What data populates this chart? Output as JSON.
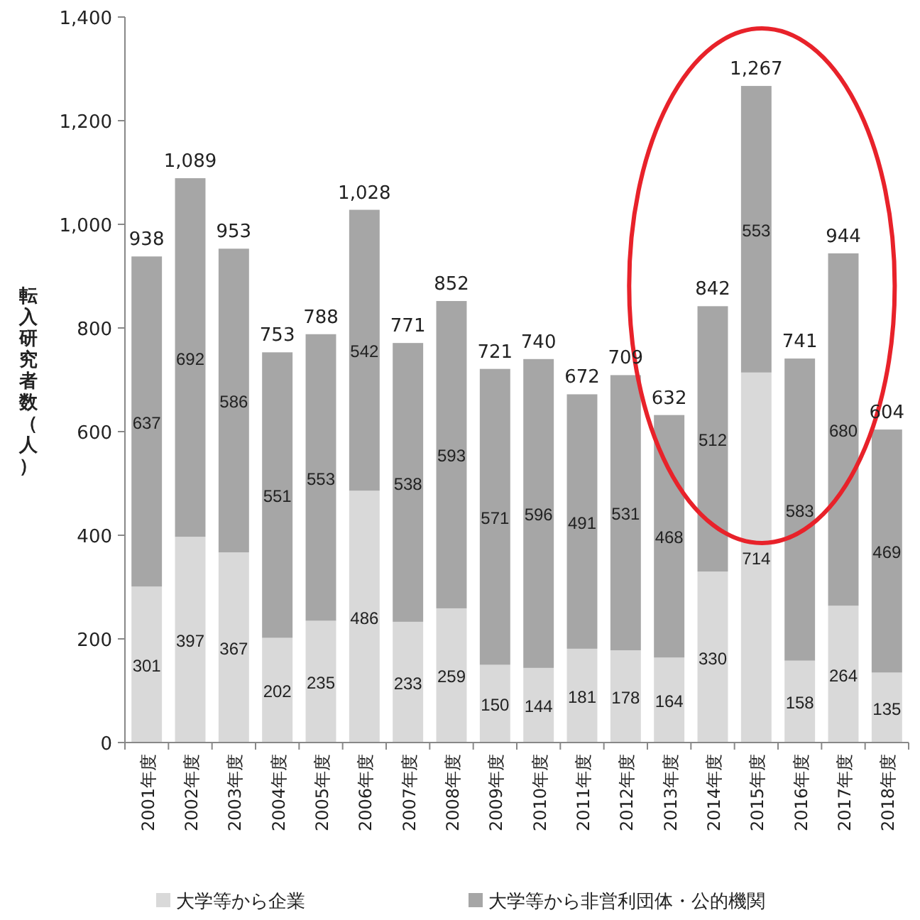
{
  "chart_data": {
    "type": "bar",
    "stacked": true,
    "ylabel": "転入研究者数（人）",
    "categories": [
      "2001年度",
      "2002年度",
      "2003年度",
      "2004年度",
      "2005年度",
      "2006年度",
      "2007年度",
      "2008年度",
      "2009年度",
      "2010年度",
      "2011年度",
      "2012年度",
      "2013年度",
      "2014年度",
      "2015年度",
      "2016年度",
      "2017年度",
      "2018年度"
    ],
    "series": [
      {
        "name": "大学等から企業",
        "color": "#d9d9d9",
        "values": [
          301,
          397,
          367,
          202,
          235,
          486,
          233,
          259,
          150,
          144,
          181,
          178,
          164,
          330,
          714,
          158,
          264,
          135
        ]
      },
      {
        "name": "大学等から非営利団体・公的機関",
        "color": "#a6a6a6",
        "values": [
          637,
          692,
          586,
          551,
          553,
          542,
          538,
          593,
          571,
          596,
          491,
          531,
          468,
          512,
          553,
          583,
          680,
          469
        ]
      }
    ],
    "totals": [
      "938",
      "1,089",
      "953",
      "753",
      "788",
      "1,028",
      "771",
      "852",
      "721",
      "740",
      "672",
      "709",
      "632",
      "842",
      "1,267",
      "741",
      "944",
      "604"
    ],
    "data_labels": true,
    "ylim": [
      0,
      1400
    ],
    "yticks": [
      0,
      {
        "value": 200,
        "label": "200"
      },
      {
        "value": 400,
        "label": "400"
      },
      {
        "value": 600,
        "label": "600"
      },
      {
        "value": 800,
        "label": "800"
      },
      {
        "value": 1000,
        "label": "1,000"
      },
      {
        "value": 1200,
        "label": "1,200"
      },
      {
        "value": 1400,
        "label": "1,400"
      }
    ],
    "legend": "bottom",
    "grid": false
  }
}
